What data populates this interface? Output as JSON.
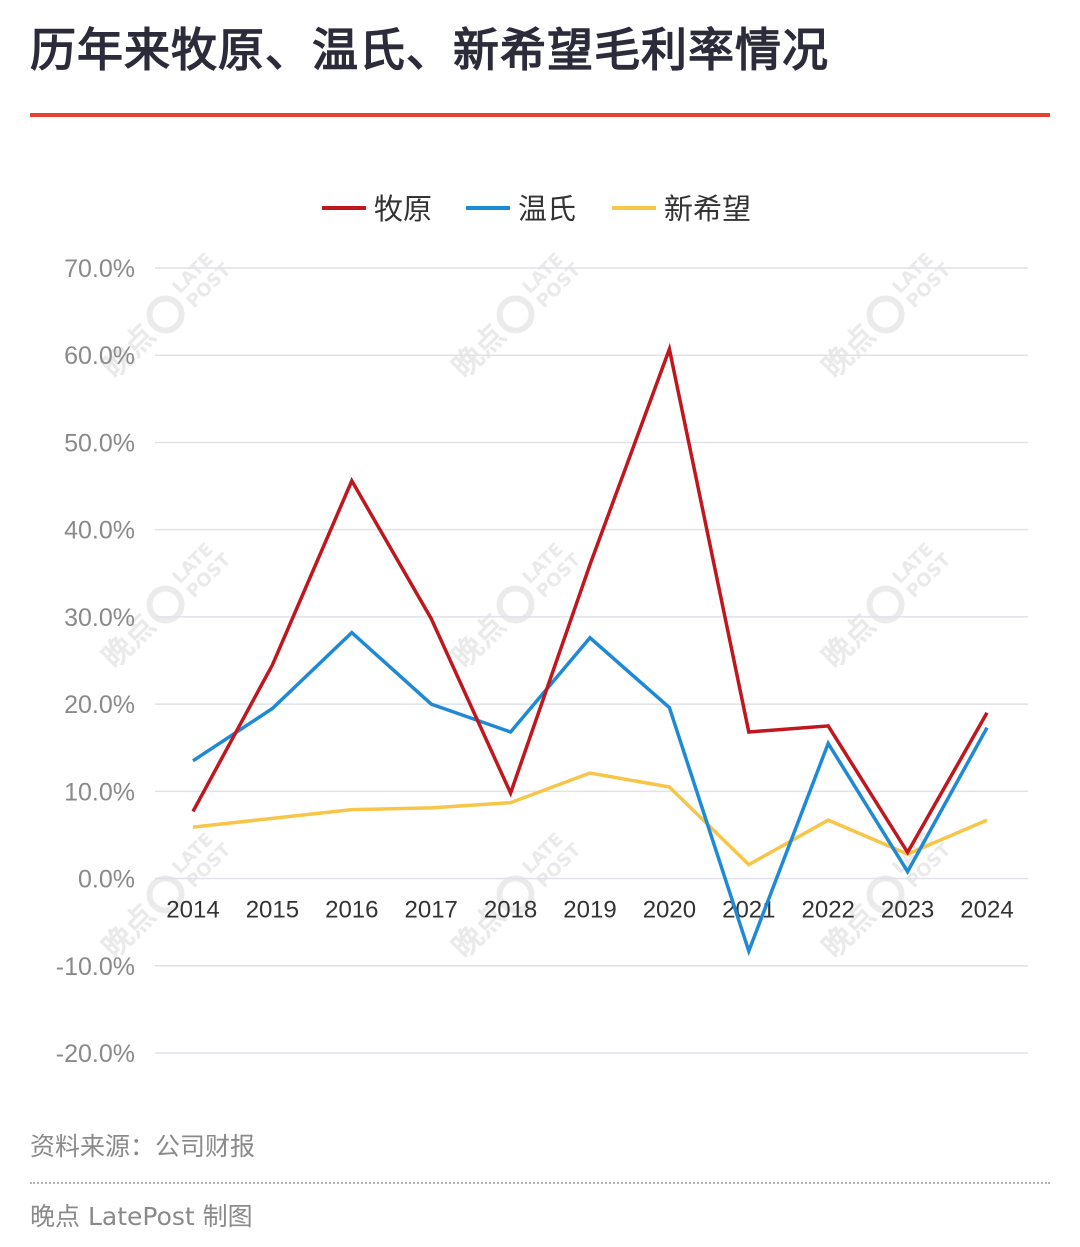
{
  "header": {
    "title": "历年来牧原、温氏、新希望毛利率情况"
  },
  "footer": {
    "source": "资料来源：公司财报",
    "credit": "晚点 LatePost 制图"
  },
  "watermark": {
    "brand_cn": "晚点",
    "brand_en_1": "LATE",
    "brand_en_2": "POST"
  },
  "colors": {
    "accent": "#e8412f",
    "muyuan": "#c0161e",
    "wens": "#1e8ad6",
    "newhope": "#f7c548"
  },
  "chart_data": {
    "type": "line",
    "title": "",
    "xlabel": "",
    "ylabel": "",
    "x": [
      "2014",
      "2015",
      "2016",
      "2017",
      "2018",
      "2019",
      "2020",
      "2021",
      "2022",
      "2023",
      "2024"
    ],
    "ylim": [
      -20,
      70
    ],
    "yticks": [
      -20,
      -10,
      0,
      10,
      20,
      30,
      40,
      50,
      60,
      70
    ],
    "ytick_labels": [
      "-20.0%",
      "-10.0%",
      "0.0%",
      "10.0%",
      "20.0%",
      "30.0%",
      "40.0%",
      "50.0%",
      "60.0%",
      "70.0%"
    ],
    "grid": true,
    "legend_position": "top-center",
    "series": [
      {
        "name": "牧原",
        "color": "#c0161e",
        "values": [
          7.7,
          24.5,
          45.6,
          29.8,
          9.8,
          36.0,
          60.7,
          16.8,
          17.5,
          3.0,
          19.0
        ]
      },
      {
        "name": "温氏",
        "color": "#1e8ad6",
        "values": [
          13.5,
          19.5,
          28.2,
          20.0,
          16.8,
          27.6,
          19.6,
          -8.3,
          15.5,
          0.8,
          17.3
        ]
      },
      {
        "name": "新希望",
        "color": "#f7c548",
        "values": [
          5.9,
          6.9,
          7.9,
          8.1,
          8.7,
          12.1,
          10.5,
          1.6,
          6.7,
          2.8,
          6.7
        ]
      }
    ]
  }
}
